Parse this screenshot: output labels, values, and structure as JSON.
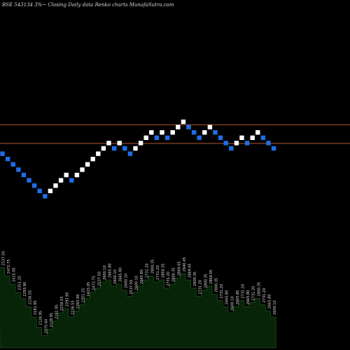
{
  "header": {
    "text": "BSE 543134 3%~ Closing Daily data Renko charts MunafaSutra.com"
  },
  "colors": {
    "background": "#000000",
    "up_brick": "#ffffff",
    "down_brick": "#1e6ee6",
    "ref_line": "#b2562f",
    "volume_fill": "#082408",
    "volume_stroke": "#1d4a1d",
    "label_text": "#dcdcdc"
  },
  "chart_data": {
    "type": "renko",
    "x_axis": "none",
    "y_axis": "none",
    "grid": false,
    "brick_directions": [
      "D",
      "D",
      "D",
      "D",
      "D",
      "D",
      "D",
      "D",
      "D",
      "U",
      "U",
      "U",
      "U",
      "D",
      "U",
      "U",
      "U",
      "U",
      "U",
      "U",
      "U",
      "D",
      "U",
      "D",
      "D",
      "U",
      "U",
      "U",
      "U",
      "D",
      "U",
      "D",
      "U",
      "U",
      "U",
      "D",
      "D",
      "D",
      "U",
      "U",
      "D",
      "D",
      "D",
      "D",
      "U",
      "U",
      "D",
      "U",
      "U",
      "D",
      "D",
      "D"
    ],
    "brick_rows": [
      -1,
      -2,
      -3,
      -4,
      -5,
      -6,
      -7,
      -8,
      -9,
      -8,
      -7,
      -6,
      -5,
      -6,
      -5,
      -4,
      -3,
      -2,
      -1,
      0,
      1,
      0,
      1,
      0,
      -1,
      0,
      1,
      2,
      3,
      2,
      3,
      2,
      3,
      4,
      5,
      4,
      3,
      2,
      3,
      4,
      3,
      2,
      1,
      0,
      1,
      2,
      1,
      2,
      3,
      2,
      1,
      0
    ],
    "reference_lines": [
      {
        "label": "upper",
        "row": 4.5
      },
      {
        "label": "lower",
        "row": 1.0
      }
    ],
    "price_labels": [
      "2537.50",
      "2472.75",
      "2415.05",
      "2351.25",
      "2293.90",
      "2236.55",
      "2181.95",
      "2128.95",
      "2075.60",
      "2128.95",
      "2181.95",
      "2236.55",
      "2293.90",
      "2236.55",
      "2293.90",
      "2351.25",
      "2415.05",
      "2472.75",
      "2537.50",
      "2600.10",
      "2665.80",
      "2600.10",
      "2665.80",
      "2600.10",
      "2537.50",
      "2600.10",
      "2665.80",
      "2731.20",
      "2800.35",
      "2731.20",
      "2800.35",
      "2731.20",
      "2800.35",
      "2869.05",
      "2940.45",
      "2869.05",
      "2800.35",
      "2731.20",
      "2800.35",
      "2869.05",
      "2800.35",
      "2731.20",
      "2665.80",
      "2600.10",
      "2665.80",
      "2731.20",
      "2665.80",
      "2731.20",
      "2800.35",
      "2731.20",
      "2665.80",
      "2600.10"
    ],
    "volume_profile": [
      0.78,
      0.7,
      0.62,
      0.54,
      0.48,
      0.4,
      0.3,
      0.2,
      0.12,
      0.18,
      0.26,
      0.34,
      0.38,
      0.3,
      0.36,
      0.42,
      0.48,
      0.54,
      0.58,
      0.64,
      0.66,
      0.6,
      0.62,
      0.56,
      0.5,
      0.54,
      0.6,
      0.66,
      0.7,
      0.64,
      0.66,
      0.58,
      0.62,
      0.68,
      0.72,
      0.66,
      0.58,
      0.5,
      0.56,
      0.6,
      0.52,
      0.46,
      0.4,
      0.34,
      0.4,
      0.46,
      0.4,
      0.44,
      0.48,
      0.42,
      0.36,
      0.3
    ]
  }
}
